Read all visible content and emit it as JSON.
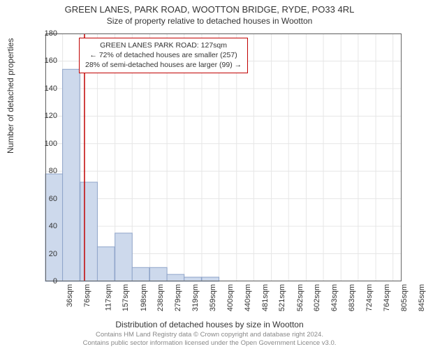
{
  "title_main": "GREEN LANES, PARK ROAD, WOOTTON BRIDGE, RYDE, PO33 4RL",
  "title_sub": "Size of property relative to detached houses in Wootton",
  "y_label": "Number of detached properties",
  "x_label": "Distribution of detached houses by size in Wootton",
  "chart": {
    "type": "histogram",
    "background_color": "#ffffff",
    "grid_color": "#e6e6e6",
    "axis_color": "#666666",
    "bar_fill": "#cdd9ec",
    "bar_stroke": "#8fa4c9",
    "marker_line_color": "#c00000",
    "marker_x_value": 127,
    "ylim": [
      0,
      180
    ],
    "ytick_step": 20,
    "x_min": 36,
    "x_max": 865,
    "x_ticks": [
      36,
      76,
      117,
      157,
      198,
      238,
      279,
      319,
      359,
      400,
      440,
      481,
      521,
      562,
      602,
      643,
      683,
      724,
      764,
      805,
      845
    ],
    "x_tick_labels": [
      "36sqm",
      "76sqm",
      "117sqm",
      "157sqm",
      "198sqm",
      "238sqm",
      "279sqm",
      "319sqm",
      "359sqm",
      "400sqm",
      "440sqm",
      "481sqm",
      "521sqm",
      "562sqm",
      "602sqm",
      "643sqm",
      "683sqm",
      "724sqm",
      "764sqm",
      "805sqm",
      "845sqm"
    ],
    "bars": [
      {
        "x": 56,
        "h": 78
      },
      {
        "x": 96,
        "h": 154
      },
      {
        "x": 137,
        "h": 72
      },
      {
        "x": 177,
        "h": 25
      },
      {
        "x": 218,
        "h": 35
      },
      {
        "x": 258,
        "h": 10
      },
      {
        "x": 299,
        "h": 10
      },
      {
        "x": 339,
        "h": 5
      },
      {
        "x": 379,
        "h": 3
      },
      {
        "x": 420,
        "h": 3
      },
      {
        "x": 460,
        "h": 0
      },
      {
        "x": 501,
        "h": 0
      },
      {
        "x": 541,
        "h": 0
      },
      {
        "x": 582,
        "h": 0
      },
      {
        "x": 622,
        "h": 0
      },
      {
        "x": 663,
        "h": 0
      },
      {
        "x": 703,
        "h": 0
      },
      {
        "x": 744,
        "h": 0
      },
      {
        "x": 784,
        "h": 0
      },
      {
        "x": 825,
        "h": 0
      }
    ],
    "bar_width_data": 40
  },
  "annotation": {
    "line1": "GREEN LANES PARK ROAD: 127sqm",
    "line2": "← 72% of detached houses are smaller (257)",
    "line3": "28% of semi-detached houses are larger (99) →",
    "border_color": "#c00000"
  },
  "credits": {
    "line1": "Contains HM Land Registry data © Crown copyright and database right 2024.",
    "line2": "Contains public sector information licensed under the Open Government Licence v3.0."
  }
}
